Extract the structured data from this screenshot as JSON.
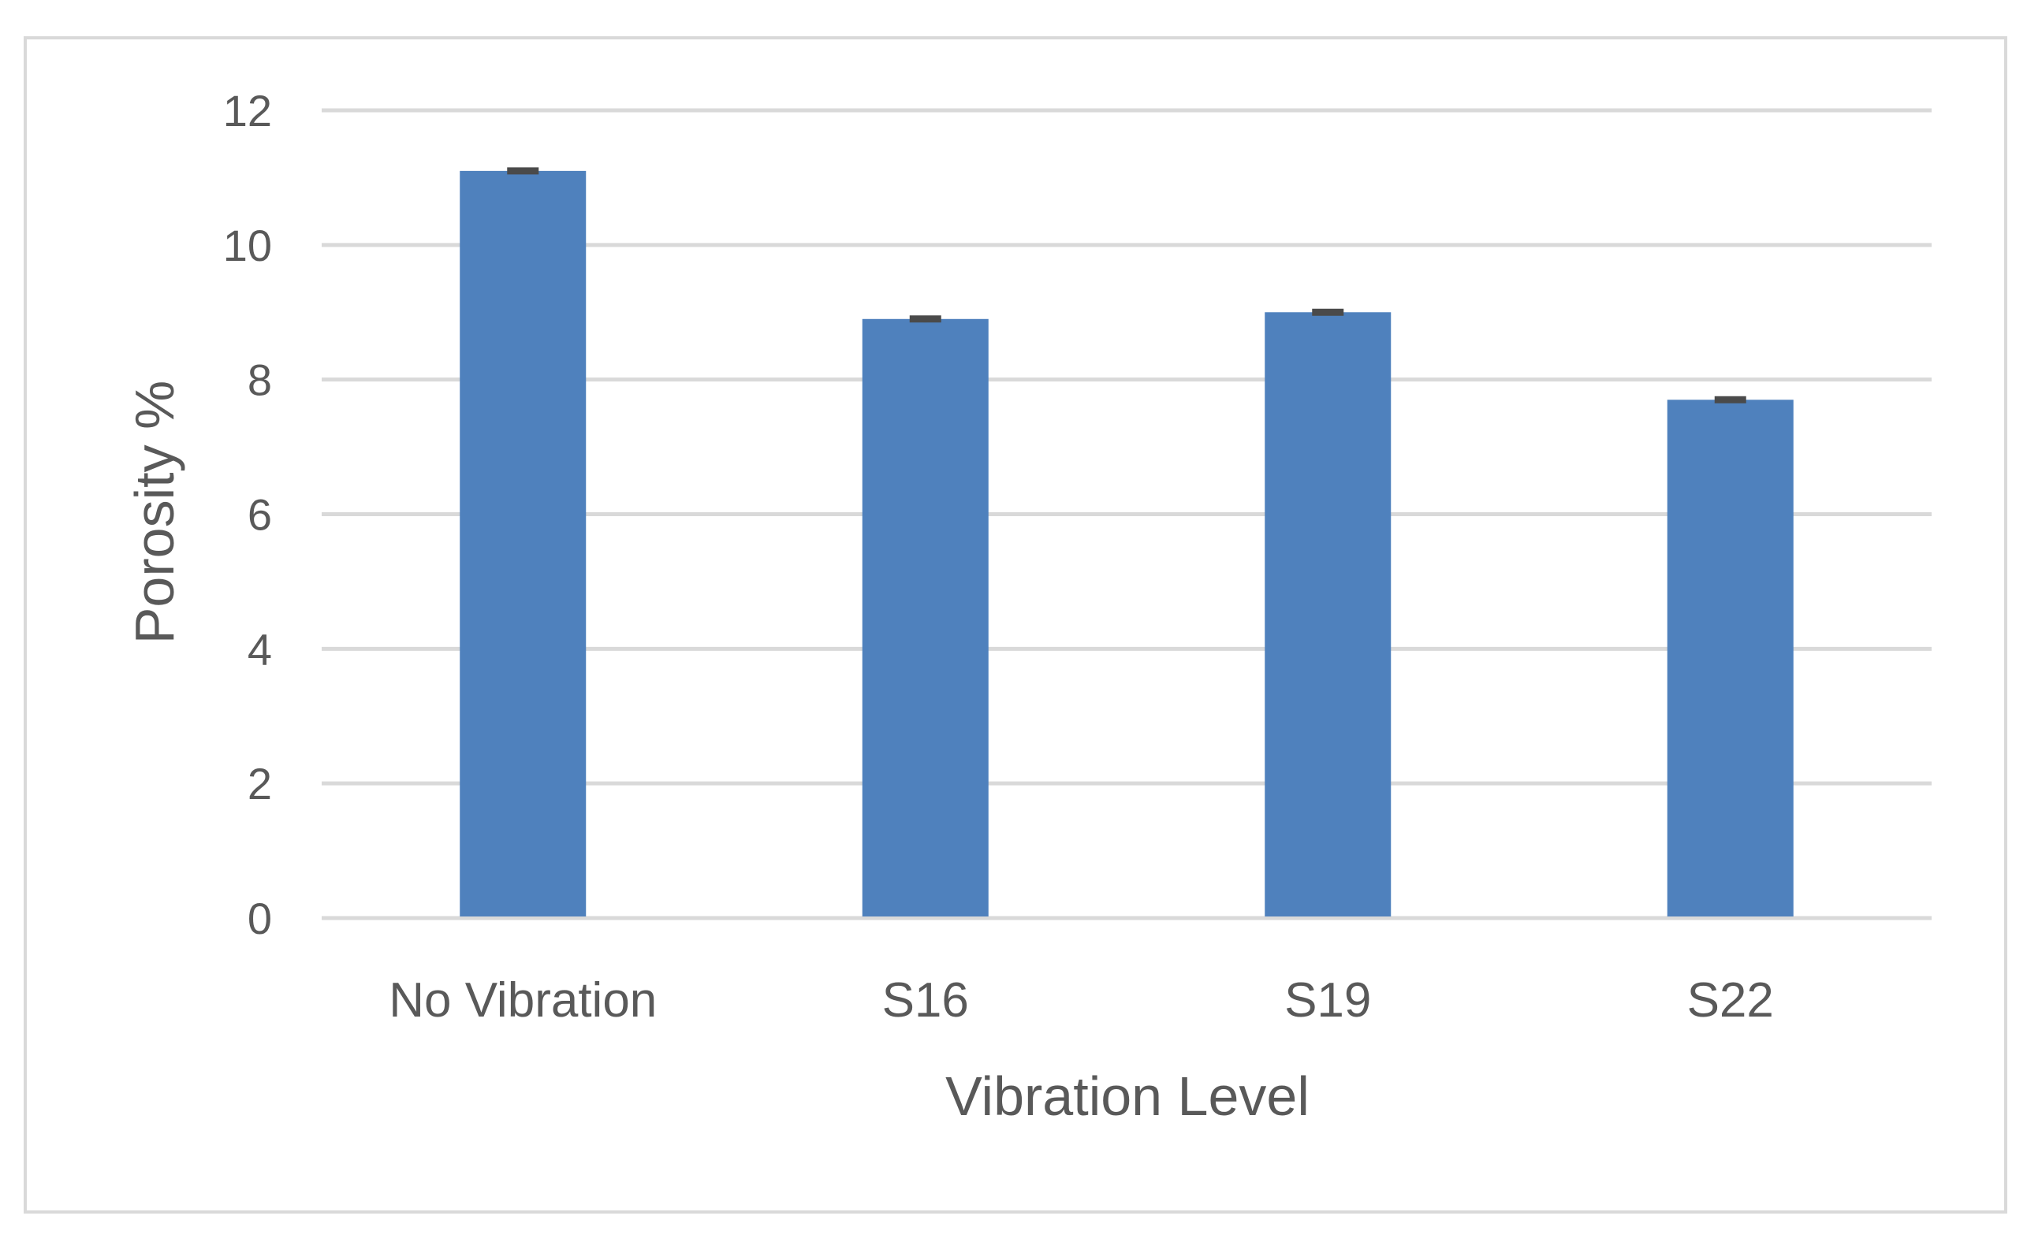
{
  "chart_data": {
    "type": "bar",
    "title": "",
    "xlabel": "Vibration Level",
    "ylabel": "Porosity %",
    "categories": [
      "No Vibration",
      "S16",
      "S19",
      "S22"
    ],
    "series": [
      {
        "values": [
          11.1,
          8.9,
          9.0,
          7.7
        ],
        "error": [
          0.03,
          0.05,
          0.04,
          0.04
        ]
      }
    ],
    "ylim": [
      0,
      12
    ],
    "yticks": [
      0,
      2,
      4,
      6,
      8,
      10,
      12
    ],
    "ytick_labels": [
      "0",
      "2",
      "4",
      "6",
      "8",
      "10",
      "12"
    ],
    "grid": true,
    "legend": "none",
    "colors": {
      "bar": "#4f81bd",
      "error_bar": "#4a4a4a",
      "grid": "#d9d9d9",
      "text": "#595959"
    }
  }
}
